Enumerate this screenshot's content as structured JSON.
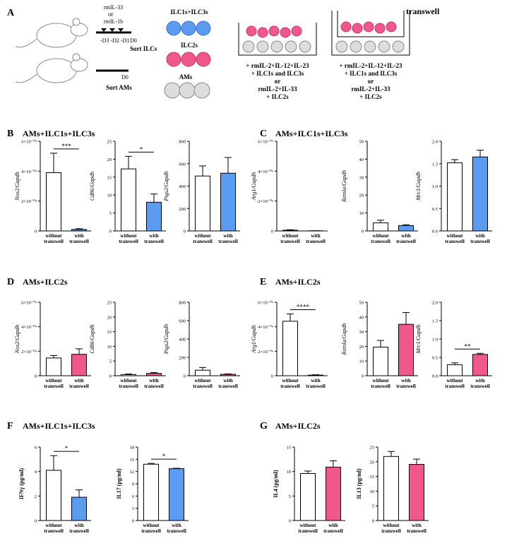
{
  "panel_a": {
    "letter": "A",
    "treatments": [
      "rmIL-33",
      "or",
      "rmIL-1b"
    ],
    "days": "-D3 -D2 -D1",
    "d0_ilc": "D0",
    "sort_ilc": "Sort ILCs",
    "d0_am": "D0",
    "sort_am": "Sort AMs",
    "cell_labels": [
      "ILC1s+ILC3s",
      "ILC2s",
      "AMs"
    ],
    "conditions_left": [
      "+ rmIL-2+IL-12+IL-23",
      "+ ILC1s and ILC3s",
      "or",
      "rmIL-2+IL-33",
      "+ ILC2s"
    ],
    "conditions_right": [
      "+ rmIL-2+IL-12+IL-23",
      "+ ILC1s and ILC3s",
      "or",
      "rmIL-2+IL-33",
      "+ ILC2s"
    ],
    "transwell": "transwell"
  },
  "panels": [
    {
      "letter": "B",
      "title": "AMs+ILC1s+ILC3s"
    },
    {
      "letter": "C",
      "title": "AMs+ILC1s+ILC3s"
    },
    {
      "letter": "D",
      "title": "AMs+ILC2s"
    },
    {
      "letter": "E",
      "title": "AMs+ILC2s"
    },
    {
      "letter": "F",
      "title": "AMs+ILC1s+ILC3s"
    },
    {
      "letter": "G",
      "title": "AMs+ILC2s"
    }
  ],
  "chart_data": [
    {
      "type": "bar",
      "ylabel": "Nos2/Gapdh",
      "ylabel_style": "italic",
      "categories": [
        [
          "without",
          "transwell"
        ],
        [
          "with",
          "transwell"
        ]
      ],
      "values": [
        0.00039,
        1e-05
      ],
      "errors": [
        0.00013,
        5e-06
      ],
      "colors": [
        "#ffffff",
        "#5b9bf0"
      ],
      "ylim": [
        0,
        0.0006
      ],
      "yticks": [
        0,
        {
          "value": 0.0002,
          "label": "2×10⁻⁰⁴"
        },
        {
          "value": 0.0004,
          "label": "4×10⁻⁰⁴"
        },
        {
          "value": 0.0006,
          "label": "6×10⁻⁰⁴"
        }
      ],
      "significance": "***"
    },
    {
      "type": "bar",
      "ylabel": "Cd86/Gapdh",
      "ylabel_style": "italic",
      "categories": [
        [
          "without",
          "transwell"
        ],
        [
          "with",
          "transwell"
        ]
      ],
      "values": [
        17.3,
        8
      ],
      "errors": [
        3.5,
        2.3
      ],
      "colors": [
        "#ffffff",
        "#5b9bf0"
      ],
      "ylim": [
        0,
        25
      ],
      "yticks": [
        0,
        5,
        10,
        15,
        20,
        25
      ],
      "significance": "*"
    },
    {
      "type": "bar",
      "ylabel": "Ptgs2/Gapdh",
      "ylabel_style": "italic",
      "categories": [
        [
          "without",
          "transwell"
        ],
        [
          "with",
          "transwell"
        ]
      ],
      "values": [
        490,
        515
      ],
      "errors": [
        90,
        140
      ],
      "colors": [
        "#ffffff",
        "#5b9bf0"
      ],
      "ylim": [
        0,
        800
      ],
      "yticks": [
        0,
        200,
        400,
        600,
        800
      ]
    },
    {
      "type": "bar",
      "ylabel": "Arg1/Gapdh",
      "ylabel_style": "italic",
      "categories": [
        [
          "without",
          "transwell"
        ],
        [
          "with",
          "transwell"
        ]
      ],
      "values": [
        5e-08,
        1e-08
      ],
      "errors": [
        3e-08,
        5e-09
      ],
      "colors": [
        "#ffffff",
        "#5b9bf0"
      ],
      "ylim": [
        0,
        6e-06
      ],
      "yticks": [
        0,
        {
          "value": 2e-06,
          "label": "2×10⁻⁰⁶"
        },
        {
          "value": 4e-06,
          "label": "4×10⁻⁰⁶"
        },
        {
          "value": 6e-06,
          "label": "6×10⁻⁰⁶"
        }
      ]
    },
    {
      "type": "bar",
      "ylabel": "Retnla/Gapdh",
      "ylabel_style": "italic",
      "categories": [
        [
          "without",
          "transwell"
        ],
        [
          "with",
          "transwell"
        ]
      ],
      "values": [
        4.5,
        3
      ],
      "errors": [
        1.5,
        0.5
      ],
      "colors": [
        "#ffffff",
        "#5b9bf0"
      ],
      "ylim": [
        0,
        50
      ],
      "yticks": [
        0,
        10,
        20,
        30,
        40,
        50
      ]
    },
    {
      "type": "bar",
      "ylabel": "Mrc1/Gapdh",
      "ylabel_style": "italic",
      "categories": [
        [
          "without",
          "transwell"
        ],
        [
          "with",
          "transwell"
        ]
      ],
      "values": [
        1.52,
        1.65
      ],
      "errors": [
        0.07,
        0.15
      ],
      "colors": [
        "#ffffff",
        "#5b9bf0"
      ],
      "ylim": [
        0,
        2
      ],
      "yticks": [
        {
          "value": 0,
          "label": "0.0"
        },
        0.5,
        {
          "value": 1,
          "label": "1.0"
        },
        1.5,
        {
          "value": 2,
          "label": "2.0"
        }
      ]
    },
    {
      "type": "bar",
      "ylabel": "Nos2/Gapdh",
      "ylabel_style": "italic",
      "categories": [
        [
          "without",
          "transwell"
        ],
        [
          "with",
          "transwell"
        ]
      ],
      "values": [
        0.000145,
        0.000175
      ],
      "errors": [
        2e-05,
        4.5e-05
      ],
      "colors": [
        "#ffffff",
        "#f0578a"
      ],
      "ylim": [
        0,
        0.0006
      ],
      "yticks": [
        0,
        {
          "value": 0.0002,
          "label": "2×10⁻⁰⁴"
        },
        {
          "value": 0.0004,
          "label": "4×10⁻⁰⁴"
        },
        {
          "value": 0.0006,
          "label": "6×10⁻⁰⁴"
        }
      ]
    },
    {
      "type": "bar",
      "ylabel": "Cd86/Gapdh",
      "ylabel_style": "italic",
      "categories": [
        [
          "without",
          "transwell"
        ],
        [
          "with",
          "transwell"
        ]
      ],
      "values": [
        0.4,
        0.8
      ],
      "errors": [
        0.2,
        0.3
      ],
      "colors": [
        "#ffffff",
        "#f0578a"
      ],
      "ylim": [
        0,
        25
      ],
      "yticks": [
        0,
        5,
        10,
        15,
        20,
        25
      ]
    },
    {
      "type": "bar",
      "ylabel": "Ptgs2/Gapdh",
      "ylabel_style": "italic",
      "categories": [
        [
          "without",
          "transwell"
        ],
        [
          "with",
          "transwell"
        ]
      ],
      "values": [
        60,
        15
      ],
      "errors": [
        30,
        5
      ],
      "colors": [
        "#ffffff",
        "#f0578a"
      ],
      "ylim": [
        0,
        800
      ],
      "yticks": [
        0,
        200,
        400,
        600,
        800
      ]
    },
    {
      "type": "bar",
      "ylabel": "Arg1/Gapdh",
      "ylabel_style": "italic",
      "categories": [
        [
          "without",
          "transwell"
        ],
        [
          "with",
          "transwell"
        ]
      ],
      "values": [
        4.45e-06,
        5e-08
      ],
      "errors": [
        6e-07,
        3e-08
      ],
      "colors": [
        "#ffffff",
        "#f0578a"
      ],
      "ylim": [
        0,
        6e-06
      ],
      "yticks": [
        0,
        {
          "value": 2e-06,
          "label": "2×10⁻⁰⁶"
        },
        {
          "value": 4e-06,
          "label": "4×10⁻⁰⁶"
        },
        {
          "value": 6e-06,
          "label": "6×10⁻⁰⁶"
        }
      ],
      "significance": "****"
    },
    {
      "type": "bar",
      "ylabel": "Retnla/Gapdh",
      "ylabel_style": "italic",
      "categories": [
        [
          "without",
          "transwell"
        ],
        [
          "with",
          "transwell"
        ]
      ],
      "values": [
        19.5,
        35
      ],
      "errors": [
        4.5,
        8
      ],
      "colors": [
        "#ffffff",
        "#f0578a"
      ],
      "ylim": [
        0,
        50
      ],
      "yticks": [
        0,
        10,
        20,
        30,
        40,
        50
      ]
    },
    {
      "type": "bar",
      "ylabel": "Mrc1/Gapdh",
      "ylabel_style": "italic",
      "categories": [
        [
          "without",
          "transwell"
        ],
        [
          "with",
          "transwell"
        ]
      ],
      "values": [
        0.3,
        0.58
      ],
      "errors": [
        0.05,
        0.03
      ],
      "colors": [
        "#ffffff",
        "#f0578a"
      ],
      "ylim": [
        0,
        2
      ],
      "yticks": [
        {
          "value": 0,
          "label": "0.0"
        },
        0.5,
        {
          "value": 1,
          "label": "1.0"
        },
        1.5,
        {
          "value": 2,
          "label": "2.0"
        }
      ],
      "significance": "**"
    },
    {
      "type": "bar",
      "ylabel": "IFNγ (pg/ml)",
      "ylabel_style": "bold",
      "categories": [
        [
          "without",
          "transwell"
        ],
        [
          "with",
          "transwell"
        ]
      ],
      "values": [
        4.1,
        1.9
      ],
      "errors": [
        1.2,
        0.6
      ],
      "colors": [
        "#ffffff",
        "#5b9bf0"
      ],
      "ylim": [
        0,
        6
      ],
      "yticks": [
        0,
        2,
        4,
        6
      ],
      "significance": "*"
    },
    {
      "type": "bar",
      "ylabel": "IL17 (pg/ml)",
      "ylabel_style": "bold",
      "categories": [
        [
          "without",
          "transwell"
        ],
        [
          "with",
          "transwell"
        ]
      ],
      "values": [
        13.8,
        12.7
      ],
      "errors": [
        0.2,
        0.1
      ],
      "colors": [
        "#ffffff",
        "#5b9bf0"
      ],
      "ylim": [
        0,
        18
      ],
      "yticks": [
        0,
        3,
        6,
        9,
        12,
        15,
        18
      ],
      "significance": "*"
    },
    {
      "type": "bar",
      "ylabel": "IL4 (pg/ml)",
      "ylabel_style": "bold",
      "categories": [
        [
          "without",
          "transwell"
        ],
        [
          "with",
          "transwell"
        ]
      ],
      "values": [
        9.6,
        10.9
      ],
      "errors": [
        0.5,
        1.3
      ],
      "colors": [
        "#ffffff",
        "#f0578a"
      ],
      "ylim": [
        0,
        15
      ],
      "yticks": [
        0,
        5,
        10,
        15
      ]
    },
    {
      "type": "bar",
      "ylabel": "IL13 (pg/ml)",
      "ylabel_style": "bold",
      "categories": [
        [
          "without",
          "transwell"
        ],
        [
          "with",
          "transwell"
        ]
      ],
      "values": [
        21.8,
        19.1
      ],
      "errors": [
        1.7,
        1.8
      ],
      "colors": [
        "#ffffff",
        "#f0578a"
      ],
      "ylim": [
        0,
        25
      ],
      "yticks": [
        0,
        5,
        10,
        15,
        20,
        25
      ]
    }
  ]
}
